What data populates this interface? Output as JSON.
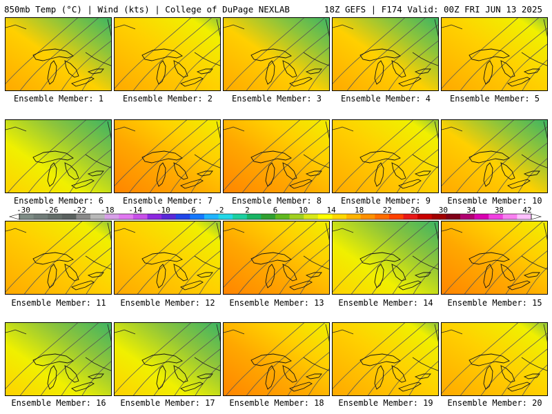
{
  "header": {
    "left": "850mb Temp (°C) | Wind (kts) | College of DuPage NEXLAB",
    "right": "18Z GEFS | F174 Valid: 00Z FRI JUN 13 2025"
  },
  "panel_label_prefix": "Ensemble Member: ",
  "members": [
    {
      "label": "Ensemble Member: 1",
      "palette": "cool-ne"
    },
    {
      "label": "Ensemble Member: 2",
      "palette": "warm"
    },
    {
      "label": "Ensemble Member: 3",
      "palette": "cool-ne"
    },
    {
      "label": "Ensemble Member: 4",
      "palette": "cool-ne"
    },
    {
      "label": "Ensemble Member: 5",
      "palette": "warm"
    },
    {
      "label": "Ensemble Member: 6",
      "palette": "cool"
    },
    {
      "label": "Ensemble Member: 7",
      "palette": "hot"
    },
    {
      "label": "Ensemble Member: 8",
      "palette": "hot"
    },
    {
      "label": "Ensemble Member: 9",
      "palette": "warm"
    },
    {
      "label": "Ensemble Member: 10",
      "palette": "cool-ne"
    },
    {
      "label": "Ensemble Member: 11",
      "palette": "warm"
    },
    {
      "label": "Ensemble Member: 12",
      "palette": "warm"
    },
    {
      "label": "Ensemble Member: 13",
      "palette": "hot"
    },
    {
      "label": "Ensemble Member: 14",
      "palette": "cool"
    },
    {
      "label": "Ensemble Member: 15",
      "palette": "hot"
    },
    {
      "label": "Ensemble Member: 16",
      "palette": "cool"
    },
    {
      "label": "Ensemble Member: 17",
      "palette": "cool"
    },
    {
      "label": "Ensemble Member: 18",
      "palette": "hot"
    },
    {
      "label": "Ensemble Member: 19",
      "palette": "warm"
    },
    {
      "label": "Ensemble Member: 20",
      "palette": "warm"
    }
  ],
  "colorbar": {
    "ticks": [
      "-30",
      "-26",
      "-22",
      "-18",
      "-14",
      "-10",
      "-6",
      "-2",
      "2",
      "6",
      "10",
      "14",
      "18",
      "22",
      "26",
      "30",
      "34",
      "38",
      "42"
    ],
    "colors": [
      "#7e8c86",
      "#707c78",
      "#646e6a",
      "#5a615f",
      "#8a8a8a",
      "#b8b8b8",
      "#d8a0e8",
      "#e078f0",
      "#c850e8",
      "#8c28e0",
      "#5a28d8",
      "#2046e8",
      "#1478ff",
      "#20b4ff",
      "#24d8e8",
      "#1cd0a0",
      "#18b464",
      "#30a030",
      "#60b820",
      "#a0d020",
      "#d8e818",
      "#ffff00",
      "#ffd800",
      "#ffb400",
      "#ff9000",
      "#ff6c00",
      "#ff4000",
      "#e81818",
      "#c80000",
      "#a00000",
      "#800018",
      "#b00070",
      "#d800b0",
      "#f040e0",
      "#f880f0",
      "#ffc0ff"
    ]
  },
  "colors": {
    "cool": "#8cc43c",
    "cool_deep": "#3cb464",
    "teal": "#24d8c0",
    "yellow": "#f0f000",
    "gold": "#ffd000",
    "orange": "#ffa800",
    "deep_orange": "#ff8400",
    "contour": "#555555"
  }
}
